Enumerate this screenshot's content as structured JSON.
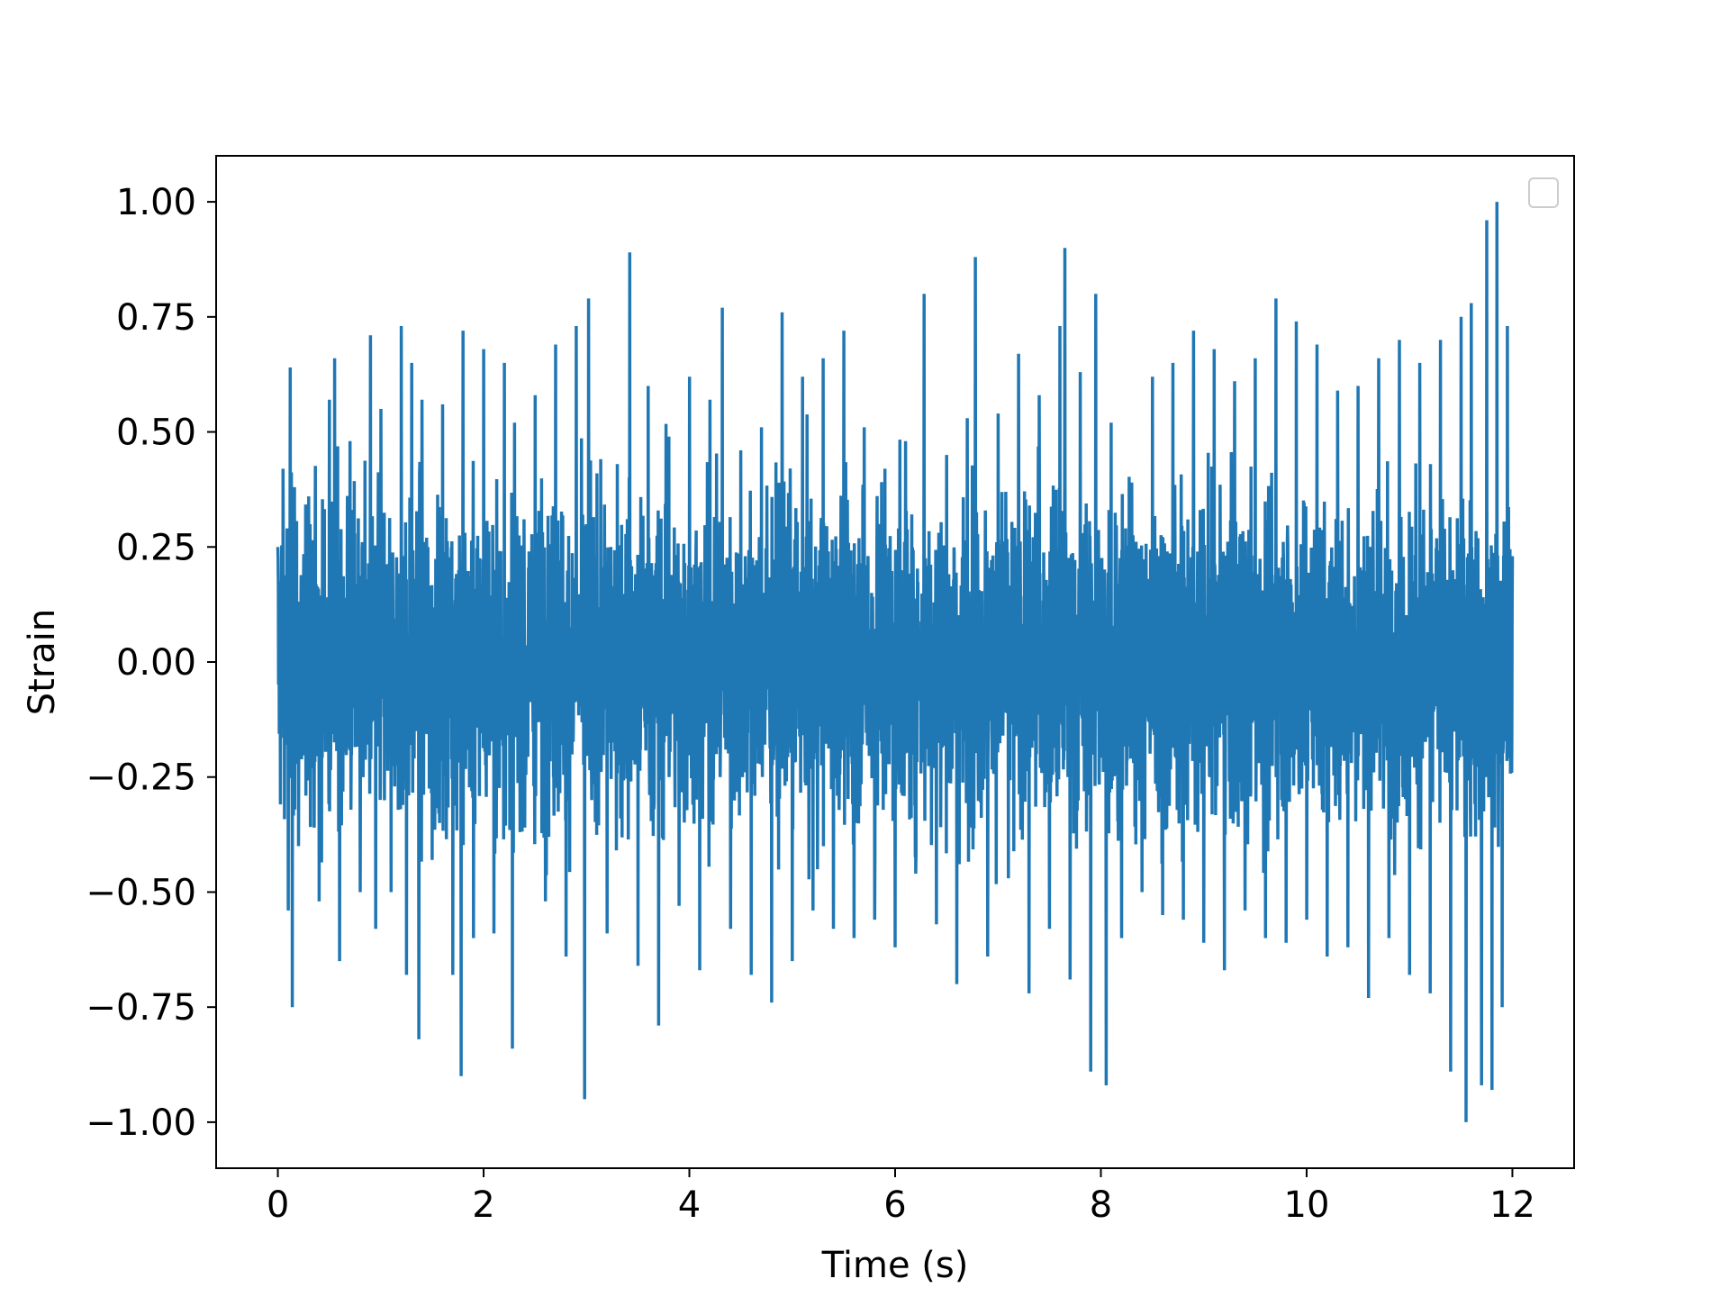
{
  "chart_data": {
    "type": "line",
    "title": "",
    "xlabel": "Time (s)",
    "ylabel": "Strain",
    "xlim": [
      -0.6,
      12.6
    ],
    "ylim": [
      -1.1,
      1.1
    ],
    "x_ticks": [
      0,
      2,
      4,
      6,
      8,
      10,
      12
    ],
    "x_tick_labels": [
      "0",
      "2",
      "4",
      "6",
      "8",
      "10",
      "12"
    ],
    "y_ticks": [
      1.0,
      0.75,
      0.5,
      0.25,
      0.0,
      -0.25,
      -0.5,
      -0.75,
      -1.0
    ],
    "y_tick_labels": [
      "1.00",
      "0.75",
      "0.50",
      "0.25",
      "0.00",
      "−0.25",
      "−0.50",
      "−0.75",
      "−1.00"
    ],
    "grid": false,
    "legend": {
      "placement": "top-right",
      "entries": []
    },
    "series": [
      {
        "color": "#1f77b4",
        "x": [
          0.0,
          0.05,
          0.1,
          0.12,
          0.14,
          0.16,
          0.2,
          0.3,
          0.4,
          0.5,
          0.55,
          0.6,
          0.7,
          0.8,
          0.9,
          0.95,
          1.0,
          1.1,
          1.2,
          1.25,
          1.3,
          1.37,
          1.4,
          1.5,
          1.6,
          1.7,
          1.78,
          1.8,
          1.9,
          2.0,
          2.1,
          2.2,
          2.28,
          2.3,
          2.4,
          2.5,
          2.6,
          2.7,
          2.8,
          2.9,
          2.98,
          3.02,
          3.05,
          3.1,
          3.2,
          3.3,
          3.42,
          3.5,
          3.6,
          3.7,
          3.8,
          3.9,
          4.0,
          4.1,
          4.2,
          4.32,
          4.4,
          4.5,
          4.6,
          4.7,
          4.8,
          4.9,
          5.0,
          5.1,
          5.2,
          5.3,
          5.4,
          5.5,
          5.6,
          5.7,
          5.8,
          5.9,
          6.0,
          6.1,
          6.2,
          6.28,
          6.4,
          6.5,
          6.6,
          6.7,
          6.78,
          6.9,
          7.0,
          7.1,
          7.2,
          7.3,
          7.4,
          7.5,
          7.6,
          7.65,
          7.7,
          7.8,
          7.9,
          7.95,
          8.05,
          8.1,
          8.2,
          8.3,
          8.4,
          8.5,
          8.6,
          8.7,
          8.8,
          8.9,
          9.0,
          9.1,
          9.2,
          9.3,
          9.4,
          9.5,
          9.6,
          9.7,
          9.8,
          9.9,
          10.0,
          10.1,
          10.2,
          10.3,
          10.4,
          10.5,
          10.6,
          10.7,
          10.8,
          10.9,
          11.0,
          11.1,
          11.2,
          11.3,
          11.4,
          11.5,
          11.55,
          11.6,
          11.7,
          11.75,
          11.8,
          11.85,
          11.9,
          11.95,
          12.0
        ],
        "y": [
          0.25,
          0.42,
          -0.54,
          0.64,
          -0.75,
          0.38,
          -0.4,
          0.36,
          -0.52,
          0.57,
          0.66,
          -0.65,
          0.48,
          -0.5,
          0.71,
          -0.58,
          0.55,
          -0.5,
          0.73,
          -0.68,
          0.65,
          -0.82,
          0.57,
          -0.43,
          0.56,
          -0.68,
          -0.9,
          0.72,
          -0.6,
          0.68,
          -0.59,
          0.65,
          -0.84,
          0.52,
          -0.36,
          0.58,
          -0.52,
          0.69,
          -0.64,
          0.73,
          -0.95,
          0.79,
          -0.3,
          0.41,
          -0.59,
          0.43,
          0.89,
          -0.66,
          0.6,
          -0.79,
          0.49,
          -0.53,
          0.62,
          -0.67,
          0.57,
          0.77,
          -0.58,
          0.46,
          -0.68,
          0.51,
          -0.74,
          0.76,
          -0.65,
          0.62,
          -0.54,
          0.66,
          -0.58,
          0.72,
          -0.6,
          0.51,
          -0.56,
          0.42,
          -0.62,
          0.48,
          -0.46,
          0.8,
          -0.57,
          0.45,
          -0.7,
          0.53,
          0.88,
          -0.64,
          0.54,
          -0.47,
          0.67,
          -0.72,
          0.58,
          -0.58,
          0.73,
          0.9,
          -0.69,
          0.63,
          -0.89,
          0.8,
          -0.92,
          0.52,
          -0.6,
          0.39,
          -0.5,
          0.62,
          -0.55,
          0.65,
          -0.56,
          0.72,
          -0.61,
          0.68,
          -0.67,
          0.61,
          -0.54,
          0.66,
          -0.6,
          0.79,
          -0.61,
          0.74,
          -0.56,
          0.69,
          -0.64,
          0.59,
          -0.62,
          0.6,
          -0.73,
          0.66,
          -0.6,
          0.7,
          -0.68,
          0.65,
          -0.72,
          0.7,
          -0.89,
          0.75,
          -1.0,
          0.78,
          -0.92,
          0.96,
          -0.93,
          1.0,
          -0.75,
          0.73,
          0.23
        ]
      }
    ]
  }
}
